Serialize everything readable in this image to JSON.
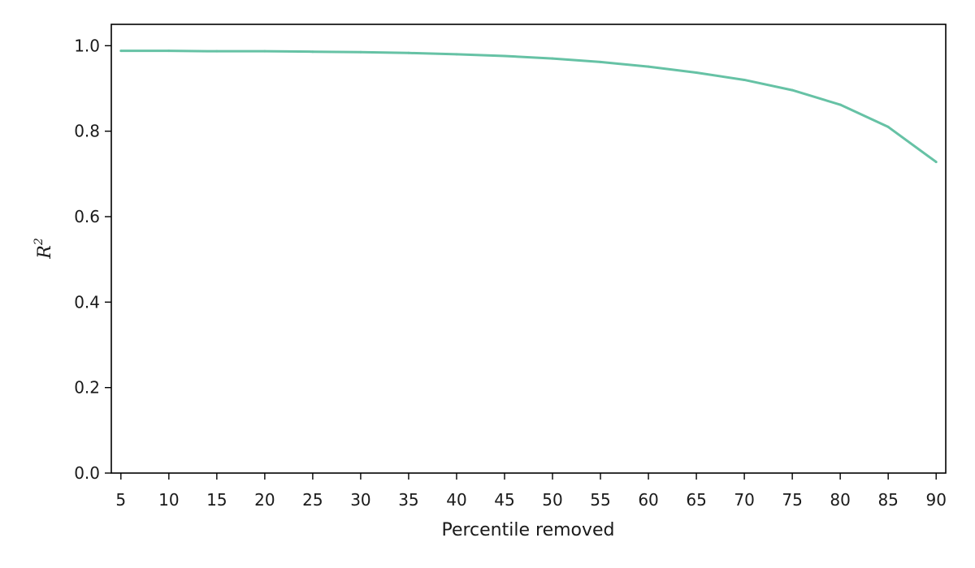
{
  "chart_data": {
    "type": "line",
    "title": "",
    "xlabel": "Percentile removed",
    "ylabel": "R",
    "ylabel_superscript": "2",
    "x": [
      5,
      10,
      15,
      20,
      25,
      30,
      35,
      40,
      45,
      50,
      55,
      60,
      65,
      70,
      75,
      80,
      85,
      90
    ],
    "series": [
      {
        "values": [
          0.988,
          0.988,
          0.987,
          0.987,
          0.986,
          0.985,
          0.983,
          0.98,
          0.976,
          0.97,
          0.962,
          0.951,
          0.937,
          0.92,
          0.896,
          0.862,
          0.81,
          0.728
        ],
        "color": "#66c2a5"
      }
    ],
    "xlim": [
      4,
      91
    ],
    "ylim": [
      0,
      1.05
    ],
    "xticks": [
      "5",
      "10",
      "15",
      "20",
      "25",
      "30",
      "35",
      "40",
      "45",
      "50",
      "55",
      "60",
      "65",
      "70",
      "75",
      "80",
      "85",
      "90"
    ],
    "yticks": [
      "0.0",
      "0.2",
      "0.4",
      "0.6",
      "0.8",
      "1.0"
    ],
    "grid": false
  }
}
